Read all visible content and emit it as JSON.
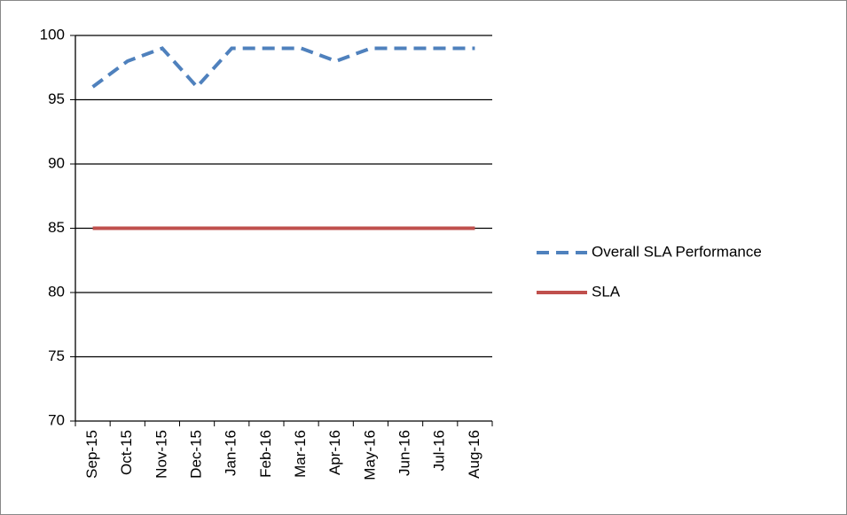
{
  "chart_data": {
    "type": "line",
    "categories": [
      "Sep-15",
      "Oct-15",
      "Nov-15",
      "Dec-15",
      "Jan-16",
      "Feb-16",
      "Mar-16",
      "Apr-16",
      "May-16",
      "Jun-16",
      "Jul-16",
      "Aug-16"
    ],
    "series": [
      {
        "name": "Overall SLA Performance",
        "color": "#4f81bd",
        "dashed": true,
        "values": [
          96,
          98,
          99,
          96,
          99,
          99,
          99,
          98,
          99,
          99,
          99,
          99
        ]
      },
      {
        "name": "SLA",
        "color": "#c0504d",
        "dashed": false,
        "values": [
          85,
          85,
          85,
          85,
          85,
          85,
          85,
          85,
          85,
          85,
          85,
          85
        ]
      }
    ],
    "ylim": [
      70,
      100
    ],
    "yticks": [
      70,
      75,
      80,
      85,
      90,
      95,
      100
    ],
    "grid": true,
    "legend": "right"
  }
}
